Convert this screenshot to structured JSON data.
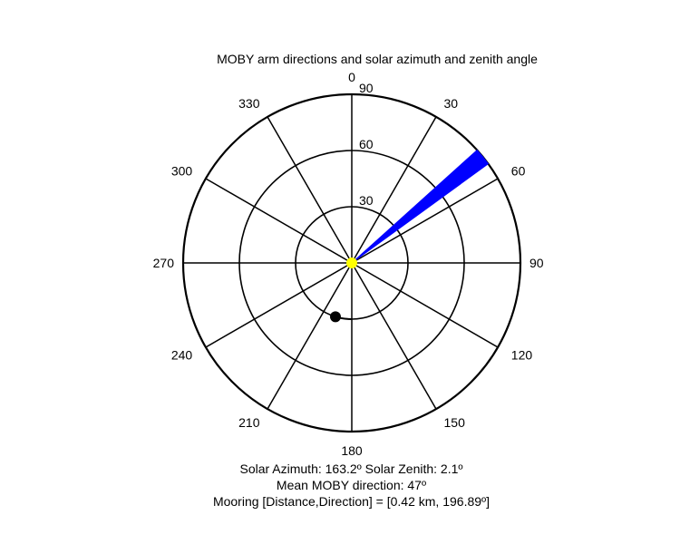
{
  "chart_data": {
    "type": "polar",
    "title": "MOBY arm directions and solar azimuth and zenith angle",
    "angle_ticks": [
      "0",
      "30",
      "60",
      "90",
      "120",
      "150",
      "180",
      "210",
      "240",
      "270",
      "300",
      "330"
    ],
    "radial_ticks": [
      "90",
      "60",
      "30"
    ],
    "radial_max": 90,
    "arm_directions": {
      "from_deg": 48,
      "to_deg": 54,
      "length": 90,
      "color": "#0000ff"
    },
    "mean_direction_deg": 47,
    "mean_direction_color": "#ffff00",
    "mooring_point": {
      "direction_deg": 196.89,
      "radius": 30,
      "color": "#000000"
    },
    "grid_color": "#000000"
  },
  "info": {
    "solar_line": "Solar Azimuth: 163.2º   Solar Zenith: 2.1º",
    "mean_line": "Mean MOBY direction: 47º",
    "mooring_line": "Mooring [Distance,Direction] = [0.42 km, 196.89º]"
  }
}
